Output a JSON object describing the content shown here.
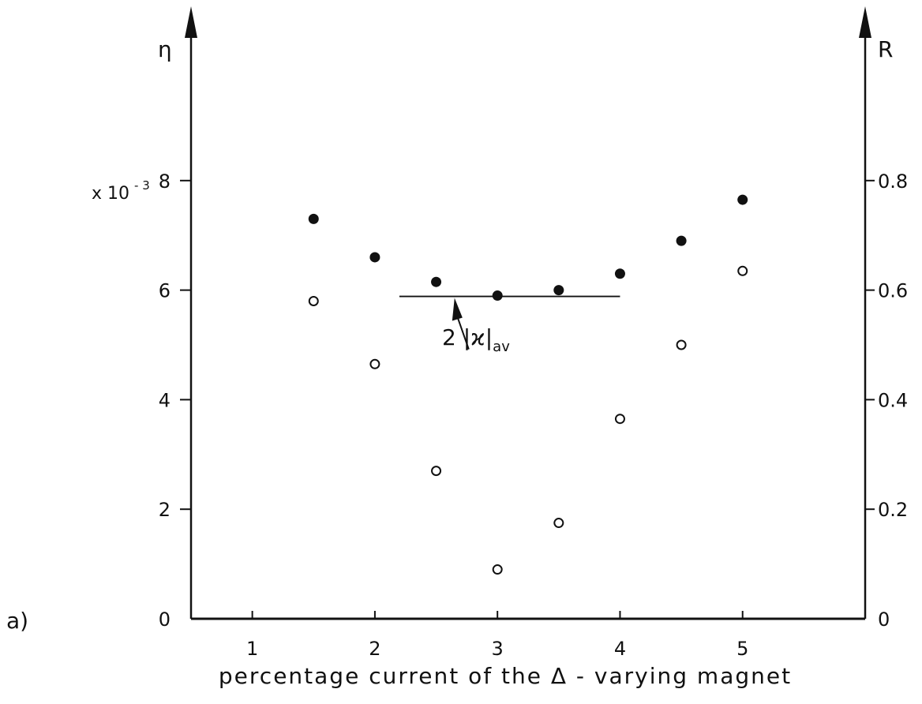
{
  "panel_label": "a)",
  "chart_data": {
    "type": "scatter",
    "xlabel": "percentage current of the Δ - varying magnet",
    "xlim": [
      0.5,
      6.0
    ],
    "x_ticks": [
      "1",
      "2",
      "3",
      "4",
      "5"
    ],
    "y_left": {
      "label": "η",
      "multiplier": "x 10",
      "exponent": "- 3",
      "lim": [
        0,
        10
      ],
      "ticks": [
        "0",
        "2",
        "4",
        "6",
        "8"
      ]
    },
    "y_right": {
      "label": "R",
      "lim": [
        0,
        1.0
      ],
      "ticks": [
        "0",
        "0.2",
        "0.4",
        "0.6",
        "0.8"
      ]
    },
    "series": [
      {
        "marker": "filled-circle",
        "axis": "left",
        "x": [
          1.5,
          2.0,
          2.5,
          3.0,
          3.5,
          4.0,
          4.5,
          5.0
        ],
        "y": [
          7.3,
          6.6,
          6.15,
          5.9,
          6.0,
          6.3,
          6.9,
          7.65
        ]
      },
      {
        "marker": "open-circle",
        "axis": "right",
        "x": [
          1.5,
          2.0,
          2.5,
          3.0,
          3.5,
          4.0,
          4.5,
          5.0
        ],
        "y": [
          0.58,
          0.465,
          0.27,
          0.09,
          0.175,
          0.365,
          0.5,
          0.635
        ]
      }
    ],
    "annotation": {
      "text_main": "2 |ϰ|",
      "text_sub": "av",
      "line_y_left": 5.9,
      "line_x": [
        2.2,
        4.0
      ],
      "arrow_target_x": 2.65
    },
    "grid": false,
    "legend": "none"
  }
}
